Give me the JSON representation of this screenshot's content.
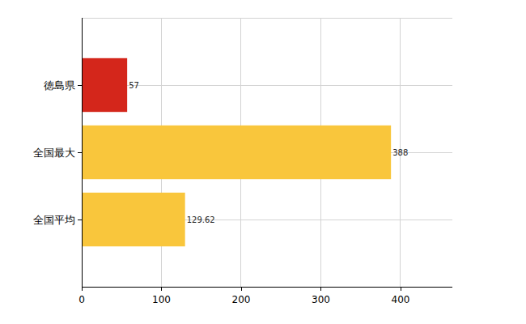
{
  "chart_data": {
    "type": "bar",
    "orientation": "horizontal",
    "categories": [
      "徳島県",
      "全国最大",
      "全国平均"
    ],
    "values": [
      57,
      388,
      129.62
    ],
    "colors": [
      "#d4261b",
      "#f9c63c",
      "#f9c63c"
    ],
    "xlim": [
      0,
      465
    ],
    "xticks": [
      0,
      100,
      200,
      300,
      400
    ],
    "grid": true,
    "data_labels": true
  }
}
